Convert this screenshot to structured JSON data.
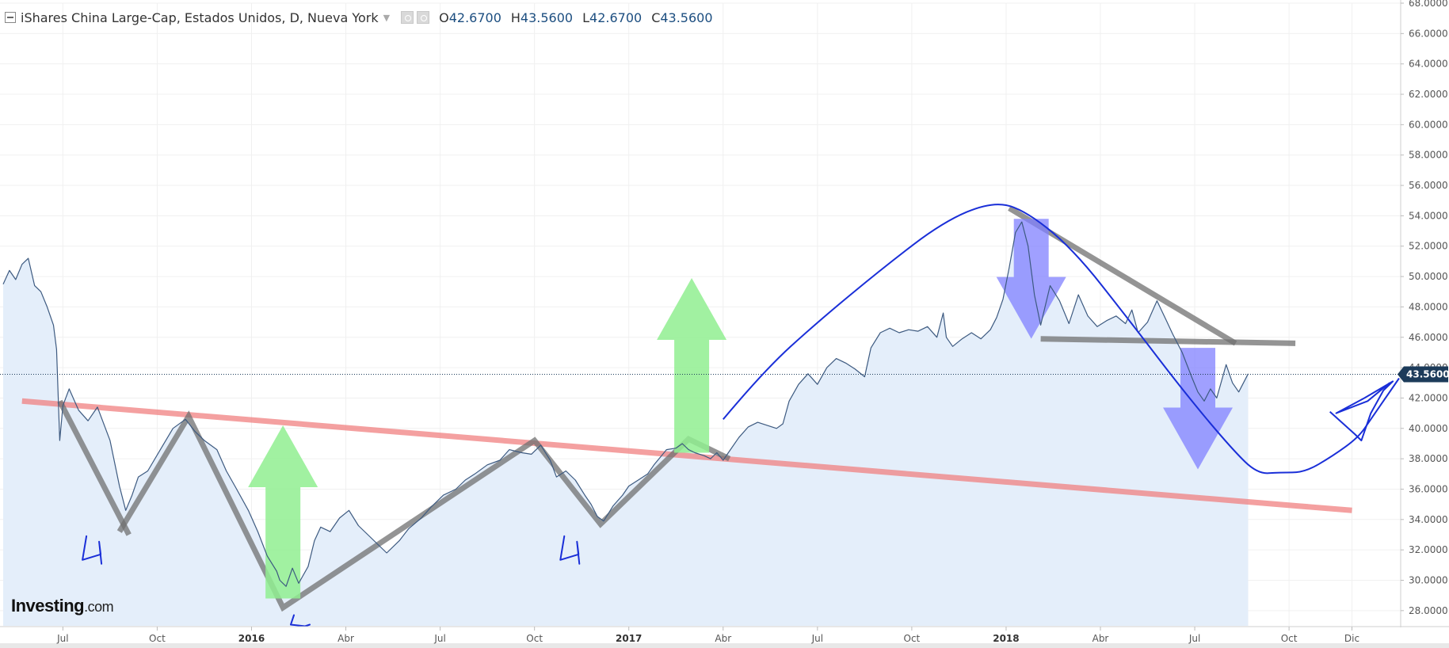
{
  "header": {
    "title": "iShares China Large-Cap, Estados Unidos, D, Nueva York",
    "ohlc": [
      {
        "k": "O",
        "v": "42.6700"
      },
      {
        "k": "H",
        "v": "43.5600"
      },
      {
        "k": "L",
        "v": "42.6700"
      },
      {
        "k": "C",
        "v": "43.5600"
      }
    ]
  },
  "logo": {
    "brand": "Investing",
    "domain": ".com"
  },
  "last_price_label": "43.5600",
  "colors": {
    "price_line": "#3d5a80",
    "area_fill": "#e4eefa",
    "support_red": "#f08080",
    "gray_pen": "#707070",
    "green_arrow": "#90ee90",
    "blue_arrow": "#8080ff",
    "blue_pen": "#1a2fd8",
    "price_tag_bg": "#1c3b5a"
  },
  "chart_data": {
    "type": "area",
    "title": "",
    "xlabel": "",
    "ylabel": "",
    "ylim": [
      27.0,
      68.0
    ],
    "grid": true,
    "y_ticks": [
      "28.0000",
      "30.0000",
      "32.0000",
      "34.0000",
      "36.0000",
      "38.0000",
      "40.0000",
      "42.0000",
      "44.0000",
      "46.0000",
      "48.0000",
      "50.0000",
      "52.0000",
      "54.0000",
      "56.0000",
      "58.0000",
      "60.0000",
      "62.0000",
      "64.0000",
      "66.0000",
      "68.0000"
    ],
    "x_ticks": [
      {
        "label": "Jul",
        "t": 1.1,
        "bold": false
      },
      {
        "label": "Oct",
        "t": 4.1,
        "bold": false
      },
      {
        "label": "2016",
        "t": 7.1,
        "bold": true
      },
      {
        "label": "Abr",
        "t": 10.1,
        "bold": false
      },
      {
        "label": "Jul",
        "t": 13.1,
        "bold": false
      },
      {
        "label": "Oct",
        "t": 16.1,
        "bold": false
      },
      {
        "label": "2017",
        "t": 19.1,
        "bold": true
      },
      {
        "label": "Abr",
        "t": 22.1,
        "bold": false
      },
      {
        "label": "Jul",
        "t": 25.1,
        "bold": false
      },
      {
        "label": "Oct",
        "t": 28.1,
        "bold": false
      },
      {
        "label": "2018",
        "t": 31.1,
        "bold": true
      },
      {
        "label": "Abr",
        "t": 34.1,
        "bold": false
      },
      {
        "label": "Jul",
        "t": 37.1,
        "bold": false
      },
      {
        "label": "Oct",
        "t": 40.1,
        "bold": false
      },
      {
        "label": "Dic",
        "t": 42.1,
        "bold": false
      }
    ],
    "series": [
      {
        "points": [
          [
            -0.8,
            49.5
          ],
          [
            -0.6,
            50.4
          ],
          [
            -0.4,
            49.8
          ],
          [
            -0.2,
            50.8
          ],
          [
            0.0,
            51.2
          ],
          [
            0.2,
            49.4
          ],
          [
            0.4,
            49.0
          ],
          [
            0.6,
            48.0
          ],
          [
            0.8,
            46.8
          ],
          [
            0.9,
            45.2
          ],
          [
            1.0,
            39.2
          ],
          [
            1.1,
            41.5
          ],
          [
            1.3,
            42.6
          ],
          [
            1.6,
            41.2
          ],
          [
            1.9,
            40.5
          ],
          [
            2.2,
            41.4
          ],
          [
            2.6,
            39.2
          ],
          [
            2.9,
            36.2
          ],
          [
            3.1,
            34.6
          ],
          [
            3.3,
            35.6
          ],
          [
            3.5,
            36.8
          ],
          [
            3.8,
            37.2
          ],
          [
            4.2,
            38.6
          ],
          [
            4.6,
            40.0
          ],
          [
            5.0,
            40.6
          ],
          [
            5.3,
            39.8
          ],
          [
            5.6,
            39.2
          ],
          [
            6.0,
            38.6
          ],
          [
            6.3,
            37.2
          ],
          [
            6.6,
            36.1
          ],
          [
            7.0,
            34.6
          ],
          [
            7.3,
            33.2
          ],
          [
            7.6,
            31.6
          ],
          [
            7.9,
            30.6
          ],
          [
            8.0,
            30.0
          ],
          [
            8.2,
            29.6
          ],
          [
            8.4,
            30.8
          ],
          [
            8.6,
            29.8
          ],
          [
            8.9,
            30.9
          ],
          [
            9.1,
            32.6
          ],
          [
            9.3,
            33.5
          ],
          [
            9.6,
            33.2
          ],
          [
            9.9,
            34.1
          ],
          [
            10.2,
            34.6
          ],
          [
            10.5,
            33.6
          ],
          [
            10.8,
            33.0
          ],
          [
            11.1,
            32.4
          ],
          [
            11.4,
            31.8
          ],
          [
            11.8,
            32.6
          ],
          [
            12.1,
            33.4
          ],
          [
            12.5,
            34.1
          ],
          [
            12.8,
            34.8
          ],
          [
            13.2,
            35.6
          ],
          [
            13.6,
            36.0
          ],
          [
            13.9,
            36.6
          ],
          [
            14.2,
            37.0
          ],
          [
            14.6,
            37.6
          ],
          [
            15.0,
            37.9
          ],
          [
            15.3,
            38.6
          ],
          [
            15.7,
            38.4
          ],
          [
            16.0,
            38.3
          ],
          [
            16.3,
            38.9
          ],
          [
            16.6,
            37.9
          ],
          [
            16.8,
            36.8
          ],
          [
            17.1,
            37.2
          ],
          [
            17.4,
            36.6
          ],
          [
            17.7,
            35.6
          ],
          [
            17.9,
            35.0
          ],
          [
            18.1,
            34.2
          ],
          [
            18.3,
            33.9
          ],
          [
            18.6,
            34.9
          ],
          [
            18.9,
            35.6
          ],
          [
            19.1,
            36.2
          ],
          [
            19.4,
            36.6
          ],
          [
            19.7,
            37.0
          ],
          [
            19.9,
            37.6
          ],
          [
            20.1,
            38.1
          ],
          [
            20.3,
            38.6
          ],
          [
            20.6,
            38.7
          ],
          [
            20.8,
            39.0
          ],
          [
            21.0,
            38.6
          ],
          [
            21.2,
            38.4
          ],
          [
            21.5,
            38.2
          ],
          [
            21.7,
            38.0
          ],
          [
            21.9,
            38.4
          ],
          [
            22.1,
            37.9
          ],
          [
            22.3,
            38.5
          ],
          [
            22.6,
            39.4
          ],
          [
            22.9,
            40.1
          ],
          [
            23.2,
            40.4
          ],
          [
            23.5,
            40.2
          ],
          [
            23.8,
            40.0
          ],
          [
            24.0,
            40.3
          ],
          [
            24.2,
            41.8
          ],
          [
            24.5,
            42.9
          ],
          [
            24.8,
            43.6
          ],
          [
            25.1,
            42.9
          ],
          [
            25.4,
            44.0
          ],
          [
            25.7,
            44.6
          ],
          [
            26.0,
            44.3
          ],
          [
            26.3,
            43.9
          ],
          [
            26.6,
            43.4
          ],
          [
            26.8,
            45.3
          ],
          [
            27.1,
            46.3
          ],
          [
            27.4,
            46.6
          ],
          [
            27.7,
            46.3
          ],
          [
            28.0,
            46.5
          ],
          [
            28.3,
            46.4
          ],
          [
            28.6,
            46.7
          ],
          [
            28.9,
            46.0
          ],
          [
            29.1,
            47.6
          ],
          [
            29.2,
            46.0
          ],
          [
            29.4,
            45.4
          ],
          [
            29.7,
            45.9
          ],
          [
            30.0,
            46.3
          ],
          [
            30.3,
            45.9
          ],
          [
            30.6,
            46.5
          ],
          [
            30.8,
            47.3
          ],
          [
            31.0,
            48.5
          ],
          [
            31.2,
            50.6
          ],
          [
            31.4,
            52.9
          ],
          [
            31.6,
            53.6
          ],
          [
            31.8,
            52.0
          ],
          [
            32.0,
            48.8
          ],
          [
            32.2,
            46.8
          ],
          [
            32.5,
            49.4
          ],
          [
            32.8,
            48.4
          ],
          [
            33.1,
            46.9
          ],
          [
            33.4,
            48.8
          ],
          [
            33.7,
            47.4
          ],
          [
            34.0,
            46.7
          ],
          [
            34.3,
            47.1
          ],
          [
            34.6,
            47.4
          ],
          [
            34.9,
            46.9
          ],
          [
            35.1,
            47.8
          ],
          [
            35.3,
            46.3
          ],
          [
            35.6,
            47.0
          ],
          [
            35.9,
            48.4
          ],
          [
            36.2,
            47.1
          ],
          [
            36.4,
            46.2
          ],
          [
            36.7,
            45.0
          ],
          [
            37.0,
            43.4
          ],
          [
            37.2,
            42.4
          ],
          [
            37.4,
            41.8
          ],
          [
            37.6,
            42.6
          ],
          [
            37.8,
            42.0
          ],
          [
            38.1,
            44.2
          ],
          [
            38.3,
            43.0
          ],
          [
            38.5,
            42.4
          ],
          [
            38.8,
            43.6
          ]
        ]
      }
    ],
    "last_value": 43.56,
    "annotations": {
      "red_support": [
        [
          -0.2,
          41.8
        ],
        [
          42.1,
          34.6
        ]
      ],
      "gray_zigzag": [
        [
          2.9,
          33.2
        ],
        [
          5.1,
          40.8
        ],
        [
          8.1,
          28.2
        ],
        [
          16.1,
          39.2
        ],
        [
          18.2,
          33.7
        ],
        [
          21.0,
          39.3
        ],
        [
          22.3,
          38.0
        ]
      ],
      "gray_left_leg": [
        [
          1.0,
          41.8
        ],
        [
          3.2,
          33.0
        ]
      ],
      "gray_resistance": [
        [
          31.2,
          54.5
        ],
        [
          38.4,
          45.6
        ]
      ],
      "gray_support": [
        [
          32.2,
          45.9
        ],
        [
          40.3,
          45.6
        ]
      ],
      "green_arrows": [
        {
          "x": 8.1,
          "y_bottom": 28.8,
          "y_top": 40.2
        },
        {
          "x": 21.1,
          "y_bottom": 38.4,
          "y_top": 49.9
        }
      ],
      "blue_arrows": [
        {
          "x": 31.9,
          "y_top": 53.8,
          "y_bottom": 45.9
        },
        {
          "x": 37.2,
          "y_top": 45.3,
          "y_bottom": 37.3
        }
      ],
      "blue_curve": [
        [
          22.1,
          40.6
        ],
        [
          23.4,
          43.8
        ],
        [
          25.1,
          47.0
        ],
        [
          27.2,
          50.6
        ],
        [
          29.1,
          53.6
        ],
        [
          30.6,
          54.9
        ],
        [
          31.6,
          54.5
        ],
        [
          33.2,
          51.9
        ],
        [
          35.1,
          46.9
        ],
        [
          36.8,
          42.3
        ],
        [
          38.3,
          38.6
        ],
        [
          39.1,
          37.0
        ],
        [
          39.8,
          37.1
        ],
        [
          40.6,
          37.1
        ],
        [
          41.5,
          38.2
        ],
        [
          42.3,
          39.4
        ],
        [
          42.7,
          40.6
        ],
        [
          43.2,
          42.1
        ],
        [
          43.6,
          43.3
        ]
      ],
      "blue_scribble": [
        [
          41.4,
          41.1
        ],
        [
          42.2,
          39.6
        ],
        [
          42.4,
          39.2
        ],
        [
          42.7,
          41.0
        ],
        [
          43.1,
          42.5
        ],
        [
          43.4,
          43.1
        ],
        [
          42.5,
          42.0
        ],
        [
          41.6,
          41.0
        ],
        [
          42.6,
          41.8
        ],
        [
          43.3,
          43.0
        ]
      ],
      "hand_marks": [
        {
          "t": 2.1,
          "v": 31.6
        },
        {
          "t": 17.3,
          "v": 31.6
        },
        {
          "t": 8.6,
          "v": 27.6
        }
      ]
    }
  }
}
